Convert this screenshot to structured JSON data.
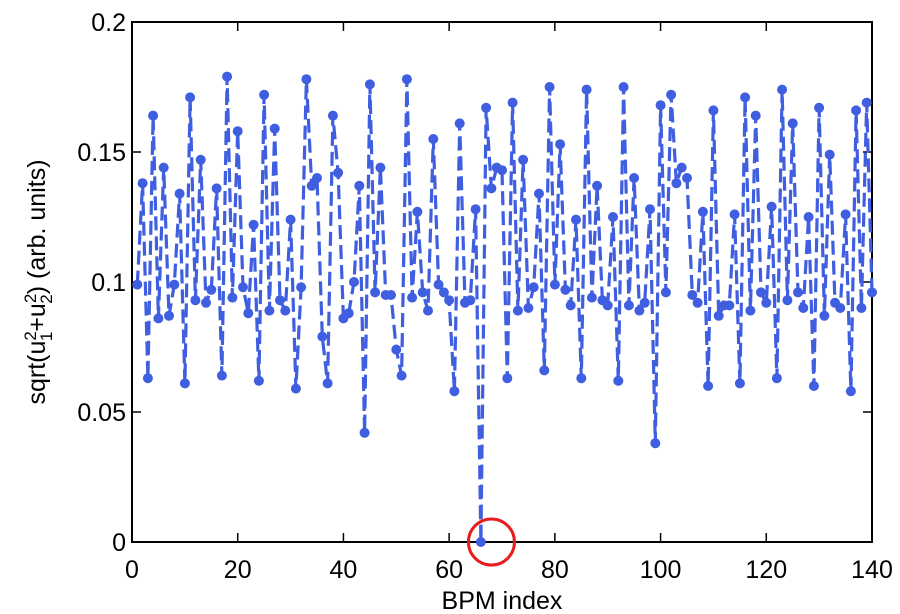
{
  "chart_data": {
    "type": "line",
    "xlabel": "BPM index",
    "ylabel": {
      "prefix": "sqrt(u",
      "sub1": "1",
      "sup1": "2",
      "mid": "+u",
      "sub2": "2",
      "sup2": "2",
      "suffix": ") (arb. units)"
    },
    "xlim": [
      0,
      140
    ],
    "ylim": [
      0,
      0.2
    ],
    "xticks": [
      0,
      20,
      40,
      60,
      80,
      100,
      120,
      140
    ],
    "xtick_labels": [
      "0",
      "20",
      "40",
      "60",
      "80",
      "100",
      "120",
      "140"
    ],
    "yticks": [
      0,
      0.05,
      0.1,
      0.15,
      0.2
    ],
    "ytick_labels": [
      "0",
      "0.05",
      "0.1",
      "0.15",
      "0.2"
    ],
    "grid": false,
    "series": [
      {
        "color": "#3f5fe0",
        "line_style": "dashed",
        "marker": "filled-circle",
        "x": [
          1,
          2,
          3,
          4,
          5,
          6,
          7,
          8,
          9,
          10,
          11,
          12,
          13,
          14,
          15,
          16,
          17,
          18,
          19,
          20,
          21,
          22,
          23,
          24,
          25,
          26,
          27,
          28,
          29,
          30,
          31,
          32,
          33,
          34,
          35,
          36,
          37,
          38,
          39,
          40,
          41,
          42,
          43,
          44,
          45,
          46,
          47,
          48,
          49,
          50,
          51,
          52,
          53,
          54,
          55,
          56,
          57,
          58,
          59,
          60,
          61,
          62,
          63,
          64,
          65,
          66,
          67,
          68,
          69,
          70,
          71,
          72,
          73,
          74,
          75,
          76,
          77,
          78,
          79,
          80,
          81,
          82,
          83,
          84,
          85,
          86,
          87,
          88,
          89,
          90,
          91,
          92,
          93,
          94,
          95,
          96,
          97,
          98,
          99,
          100,
          101,
          102,
          103,
          104,
          105,
          106,
          107,
          108,
          109,
          110,
          111,
          112,
          113,
          114,
          115,
          116,
          117,
          118,
          119,
          120,
          121,
          122,
          123,
          124,
          125,
          126,
          127,
          128,
          129,
          130,
          131,
          132,
          133,
          134,
          135,
          136,
          137,
          138,
          139,
          140
        ],
        "y": [
          0.099,
          0.138,
          0.063,
          0.164,
          0.086,
          0.144,
          0.087,
          0.099,
          0.134,
          0.061,
          0.171,
          0.093,
          0.147,
          0.092,
          0.097,
          0.136,
          0.064,
          0.179,
          0.094,
          0.158,
          0.098,
          0.088,
          0.122,
          0.062,
          0.172,
          0.089,
          0.159,
          0.093,
          0.089,
          0.124,
          0.059,
          0.098,
          0.178,
          0.137,
          0.14,
          0.079,
          0.061,
          0.164,
          0.142,
          0.086,
          0.088,
          0.1,
          0.137,
          0.042,
          0.176,
          0.096,
          0.144,
          0.095,
          0.095,
          0.074,
          0.064,
          0.178,
          0.094,
          0.127,
          0.096,
          0.089,
          0.155,
          0.099,
          0.096,
          0.093,
          0.058,
          0.161,
          0.092,
          0.093,
          0.128,
          0.0,
          0.167,
          0.136,
          0.144,
          0.143,
          0.063,
          0.169,
          0.089,
          0.147,
          0.09,
          0.098,
          0.134,
          0.066,
          0.175,
          0.099,
          0.153,
          0.097,
          0.091,
          0.124,
          0.063,
          0.174,
          0.094,
          0.137,
          0.093,
          0.091,
          0.125,
          0.062,
          0.175,
          0.091,
          0.14,
          0.089,
          0.092,
          0.128,
          0.038,
          0.168,
          0.096,
          0.172,
          0.138,
          0.144,
          0.14,
          0.095,
          0.092,
          0.127,
          0.06,
          0.166,
          0.087,
          0.091,
          0.091,
          0.126,
          0.061,
          0.171,
          0.089,
          0.164,
          0.096,
          0.092,
          0.129,
          0.063,
          0.174,
          0.093,
          0.161,
          0.096,
          0.09,
          0.125,
          0.06,
          0.167,
          0.087,
          0.149,
          0.092,
          0.09,
          0.126,
          0.058,
          0.166,
          0.09,
          0.169,
          0.096
        ]
      }
    ],
    "annotations": [
      {
        "type": "circle",
        "color": "#e81c1c",
        "x": 68,
        "y": 0.0
      }
    ]
  }
}
